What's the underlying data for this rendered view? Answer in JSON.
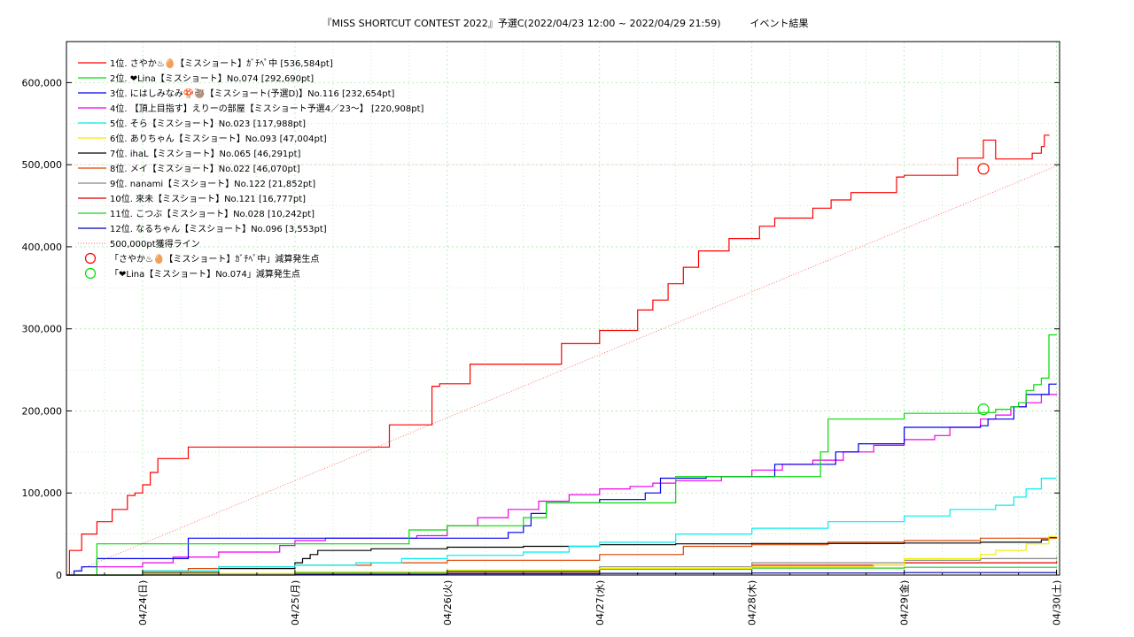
{
  "chart_data": {
    "type": "line",
    "title": "『MISS SHORTCUT CONTEST 2022』予選C(2022/04/23 12:00 ~ 2022/04/29 21:59)　　　イベント結果",
    "xlabel": "",
    "ylabel": "",
    "x_ticks": [
      "04/24(日)",
      "04/25(月)",
      "04/26(火)",
      "04/27(水)",
      "04/28(木)",
      "04/29(金)",
      "04/30(土)"
    ],
    "x_range_days": [
      -0.5,
      6.02
    ],
    "ylim": [
      0,
      650000
    ],
    "y_ticks": [
      0,
      100000,
      200000,
      300000,
      400000,
      500000,
      600000
    ],
    "y_tick_labels": [
      "0",
      "100,000",
      "200,000",
      "300,000",
      "400,000",
      "500,000",
      "600,000"
    ],
    "grid": true,
    "legend_position": "top-left",
    "series": [
      {
        "name": "1位. さやか♨🥚【ミスショート】ｶﾞﾁﾍﾟ中 [536,584pt]",
        "color": "#ff0000",
        "x": [
          -0.5,
          -0.48,
          -0.4,
          -0.3,
          -0.2,
          -0.1,
          -0.05,
          0.0,
          0.05,
          0.1,
          0.2,
          0.3,
          1.55,
          1.62,
          1.7,
          1.9,
          1.95,
          2.0,
          2.05,
          2.15,
          2.5,
          2.75,
          2.8,
          3.0,
          3.15,
          3.25,
          3.35,
          3.45,
          3.55,
          3.65,
          3.75,
          3.85,
          4.05,
          4.15,
          4.4,
          4.52,
          4.65,
          4.95,
          5.0,
          5.35,
          5.5,
          5.52,
          5.6,
          5.72,
          5.84,
          5.9,
          5.92,
          5.95
        ],
        "y": [
          0,
          30000,
          50000,
          65000,
          80000,
          97000,
          100000,
          110000,
          125000,
          142000,
          142000,
          156000,
          156000,
          183000,
          183000,
          230000,
          233000,
          233000,
          233000,
          257000,
          257000,
          282000,
          282000,
          298000,
          298000,
          323000,
          335000,
          355000,
          375000,
          395000,
          395000,
          410000,
          425000,
          435000,
          447000,
          457000,
          466000,
          485000,
          487000,
          508000,
          508000,
          530000,
          507000,
          507000,
          514000,
          522000,
          536000,
          536584
        ]
      },
      {
        "name": "2位. ❤Lina【ミスショート】No.074 [292,690pt]",
        "color": "#00dd00",
        "x": [
          -0.5,
          -0.35,
          -0.3,
          -0.2,
          1.7,
          1.75,
          2.0,
          2.4,
          2.5,
          2.65,
          3.0,
          3.5,
          3.55,
          4.45,
          4.5,
          4.7,
          5.0,
          5.5,
          5.6,
          5.7,
          5.75,
          5.8,
          5.85,
          5.9,
          5.95,
          6.0
        ],
        "y": [
          0,
          0,
          38000,
          38000,
          38000,
          55000,
          60000,
          60000,
          70000,
          88000,
          88000,
          120000,
          120000,
          150000,
          190000,
          190000,
          197000,
          198000,
          202000,
          205000,
          210000,
          225000,
          232000,
          240000,
          292690,
          292690
        ]
      },
      {
        "name": "3位. にはしみなみ🍄🦥【ミスショート(予選D)】No.116 [232,654pt]",
        "color": "#0000ee",
        "x": [
          -0.5,
          -0.45,
          -0.4,
          -0.3,
          0.3,
          1.0,
          1.3,
          1.5,
          1.9,
          2.4,
          2.5,
          2.55,
          2.65,
          3.0,
          3.3,
          3.4,
          3.55,
          3.7,
          4.05,
          4.15,
          4.55,
          4.7,
          5.0,
          5.5,
          5.55,
          5.72,
          5.8,
          5.95,
          6.0
        ],
        "y": [
          0,
          5000,
          10000,
          20000,
          45000,
          45000,
          45000,
          45000,
          45000,
          52000,
          60000,
          75000,
          88000,
          92000,
          100000,
          118000,
          118000,
          120000,
          120000,
          135000,
          150000,
          160000,
          180000,
          182000,
          190000,
          205000,
          220000,
          232654,
          232654
        ]
      },
      {
        "name": "4位. 【頂上目指す】えりーの部屋【ミスショート予選4／23～】 [220,908pt]",
        "color": "#ee00ee",
        "x": [
          -0.5,
          -0.4,
          -0.3,
          0.0,
          0.2,
          0.5,
          0.9,
          1.0,
          1.2,
          1.8,
          2.0,
          2.2,
          2.4,
          2.6,
          2.8,
          3.0,
          3.2,
          3.35,
          3.5,
          3.8,
          4.0,
          4.2,
          4.4,
          4.6,
          4.8,
          5.0,
          5.2,
          5.3,
          5.5,
          5.6,
          5.7,
          5.8,
          5.9,
          6.0
        ],
        "y": [
          0,
          0,
          10000,
          15000,
          22000,
          28000,
          36000,
          42000,
          45000,
          48000,
          60000,
          70000,
          80000,
          90000,
          98000,
          105000,
          108000,
          112000,
          115000,
          120000,
          128000,
          135000,
          140000,
          150000,
          158000,
          165000,
          170000,
          180000,
          190000,
          195000,
          205000,
          210000,
          220000,
          220908
        ]
      },
      {
        "name": "5位. そら【ミスショート】No.023 [117,988pt]",
        "color": "#00eeee",
        "x": [
          -0.5,
          0.0,
          0.5,
          1.0,
          1.4,
          1.7,
          2.0,
          2.5,
          2.8,
          3.0,
          3.5,
          4.0,
          4.5,
          5.0,
          5.3,
          5.6,
          5.72,
          5.8,
          5.9,
          6.0
        ],
        "y": [
          0,
          5000,
          10000,
          12000,
          15000,
          20000,
          24000,
          28000,
          35000,
          40000,
          50000,
          57000,
          65000,
          72000,
          80000,
          85000,
          95000,
          105000,
          117988,
          117988
        ]
      },
      {
        "name": "6位. ありちゃん【ミスショート】No.093 [47,004pt]",
        "color": "#eeee00",
        "x": [
          -0.5,
          0.0,
          1.0,
          2.0,
          3.0,
          4.0,
          4.8,
          5.0,
          5.5,
          5.6,
          5.8,
          5.95,
          6.0
        ],
        "y": [
          0,
          2000,
          4000,
          6000,
          8000,
          10000,
          12000,
          20000,
          25000,
          30000,
          38000,
          47004,
          47004
        ]
      },
      {
        "name": "7位. ihaL【ミスショート】No.065 [46,291pt]",
        "color": "#000000",
        "x": [
          -0.5,
          0.0,
          0.5,
          1.0,
          1.05,
          1.1,
          1.15,
          1.5,
          2.0,
          2.5,
          3.0,
          3.5,
          4.0,
          5.0,
          5.5,
          5.9,
          5.95,
          6.0
        ],
        "y": [
          0,
          3000,
          8000,
          15000,
          20000,
          25000,
          30000,
          32000,
          34000,
          35000,
          37000,
          38000,
          38500,
          39000,
          40000,
          43000,
          46291,
          46291
        ]
      },
      {
        "name": "8位. メイ【ミスショート】No.022 [46,070pt]",
        "color": "#dd4400",
        "x": [
          -0.5,
          0.0,
          0.3,
          0.5,
          1.0,
          1.5,
          2.0,
          3.0,
          3.5,
          3.55,
          4.0,
          4.5,
          5.0,
          5.5,
          6.0
        ],
        "y": [
          0,
          5000,
          8000,
          10000,
          12000,
          15000,
          18000,
          25000,
          25000,
          35000,
          37000,
          40000,
          42000,
          45000,
          46070
        ]
      },
      {
        "name": "9位. nanami【ミスショート】No.122 [21,852pt]",
        "color": "#888888",
        "x": [
          -0.5,
          0.0,
          1.0,
          2.0,
          3.0,
          4.0,
          5.0,
          5.5,
          6.0
        ],
        "y": [
          0,
          1000,
          2000,
          3000,
          10000,
          15000,
          18000,
          20000,
          21852
        ]
      },
      {
        "name": "10位. 來未【ミスショート】No.121 [16,777pt]",
        "color": "#dd0000",
        "x": [
          -0.5,
          0.0,
          1.0,
          2.0,
          3.0,
          4.0,
          5.0,
          6.0
        ],
        "y": [
          0,
          1000,
          2000,
          4000,
          8000,
          12000,
          15000,
          16777
        ]
      },
      {
        "name": "11位. こつぶ【ミスショート】No.028 [10,242pt]",
        "color": "#22cc22",
        "x": [
          -0.5,
          0.0,
          1.0,
          2.0,
          3.0,
          4.0,
          5.0,
          6.0
        ],
        "y": [
          0,
          1000,
          3000,
          5000,
          7000,
          8500,
          9500,
          10242
        ]
      },
      {
        "name": "12位. なるちゃん【ミスショート】No.096 [3,553pt]",
        "color": "#0000aa",
        "x": [
          -0.5,
          1.0,
          2.0,
          3.0,
          4.0,
          5.0,
          6.0
        ],
        "y": [
          0,
          1000,
          1500,
          2000,
          2500,
          3000,
          3553
        ]
      }
    ],
    "reference_line": {
      "name": "500,000pt獲得ライン",
      "color": "#ff6666",
      "y_target": 500000
    },
    "markers": [
      {
        "name": "「さやか♨🥚【ミスショート】ｶﾞﾁﾍﾟ中」減算発生点",
        "color": "#ff0000",
        "x": 5.52,
        "y": 495000
      },
      {
        "name": "「❤Lina【ミスショート】No.074」減算発生点",
        "color": "#00dd00",
        "x": 5.52,
        "y": 202000
      }
    ]
  }
}
